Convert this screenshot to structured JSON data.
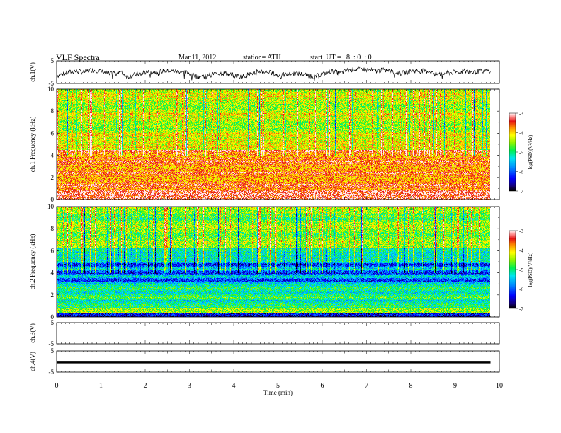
{
  "header": {
    "title": "VLF Spectra",
    "date": "Mar.11, 2012",
    "station": "station= ATH",
    "start": "start  UT =   8  : 0  : 0"
  },
  "chart_data": [
    {
      "type": "line",
      "ylabel": "ch.1(V)",
      "ylim": [
        -5,
        5
      ],
      "y_ticks": [
        5,
        -5
      ],
      "x": [
        0,
        0.2,
        0.4,
        0.6,
        0.8,
        1.0,
        1.2,
        1.4,
        1.6,
        1.8,
        2.0,
        2.2,
        2.4,
        2.6,
        2.8,
        3.0,
        3.2,
        3.4,
        3.6,
        3.8,
        4.0,
        4.2,
        4.4,
        4.6,
        4.8,
        5.0,
        5.2,
        5.4,
        5.6,
        5.8,
        6.0,
        6.2,
        6.4,
        6.6,
        6.8,
        7.0,
        7.2,
        7.4,
        7.6,
        7.8,
        8.0,
        8.2,
        8.4,
        8.6,
        8.8,
        9.0,
        9.2,
        9.4,
        9.6,
        9.8
      ],
      "series": [
        {
          "values": [
            -1.5,
            -0.5,
            0.5,
            0.0,
            1.0,
            0.5,
            -1.0,
            0.5,
            -2.0,
            -1.0,
            0.0,
            0.0,
            0.5,
            0.5,
            0.3,
            -0.5,
            -2.0,
            -1.5,
            -0.5,
            -0.5,
            -1.5,
            -2.0,
            -0.5,
            0.5,
            0.0,
            -1.5,
            -1.0,
            -0.5,
            -1.0,
            -2.0,
            -1.0,
            0.5,
            -0.5,
            1.0,
            1.5,
            1.0,
            0.5,
            1.0,
            0.0,
            -0.5,
            0.5,
            0.5,
            0.5,
            -1.0,
            -0.5,
            0.0,
            0.5,
            0.0,
            0.5,
            0.5
          ]
        }
      ]
    },
    {
      "type": "heatmap",
      "ylabel": "ch.1  Frequency  (kHz)",
      "ylim": [
        0,
        10
      ],
      "y_ticks": [
        0,
        2,
        4,
        6,
        8,
        10
      ],
      "colorbar": {
        "label": "log(PSD)(V²/Hz)",
        "ticks": [
          -7,
          -6,
          -5,
          -4,
          -3
        ]
      }
    },
    {
      "type": "heatmap",
      "ylabel": "ch.2  Frequency  (kHz)",
      "ylim": [
        0,
        10
      ],
      "y_ticks": [
        0,
        2,
        4,
        6,
        8,
        10
      ],
      "colorbar": {
        "label": "log(PSD)(V²/Hz)",
        "ticks": [
          -7,
          -6,
          -5,
          -4,
          -3
        ]
      }
    },
    {
      "type": "line",
      "ylabel": "ch.3(V)",
      "ylim": [
        -5,
        5
      ],
      "y_ticks": [
        5,
        -5
      ]
    },
    {
      "type": "line",
      "ylabel": "ch.4(V)",
      "ylim": [
        -5,
        5
      ],
      "y_ticks": [
        5,
        -5
      ],
      "x": [
        0,
        9.8
      ],
      "series": [
        {
          "values": [
            -0.3,
            -0.3
          ]
        }
      ]
    }
  ],
  "x_axis": {
    "label": "Time  (min)",
    "xlim": [
      0,
      10
    ],
    "ticks": [
      "0",
      "1",
      "2",
      "3",
      "4",
      "5",
      "6",
      "7",
      "8",
      "9",
      "10"
    ]
  }
}
